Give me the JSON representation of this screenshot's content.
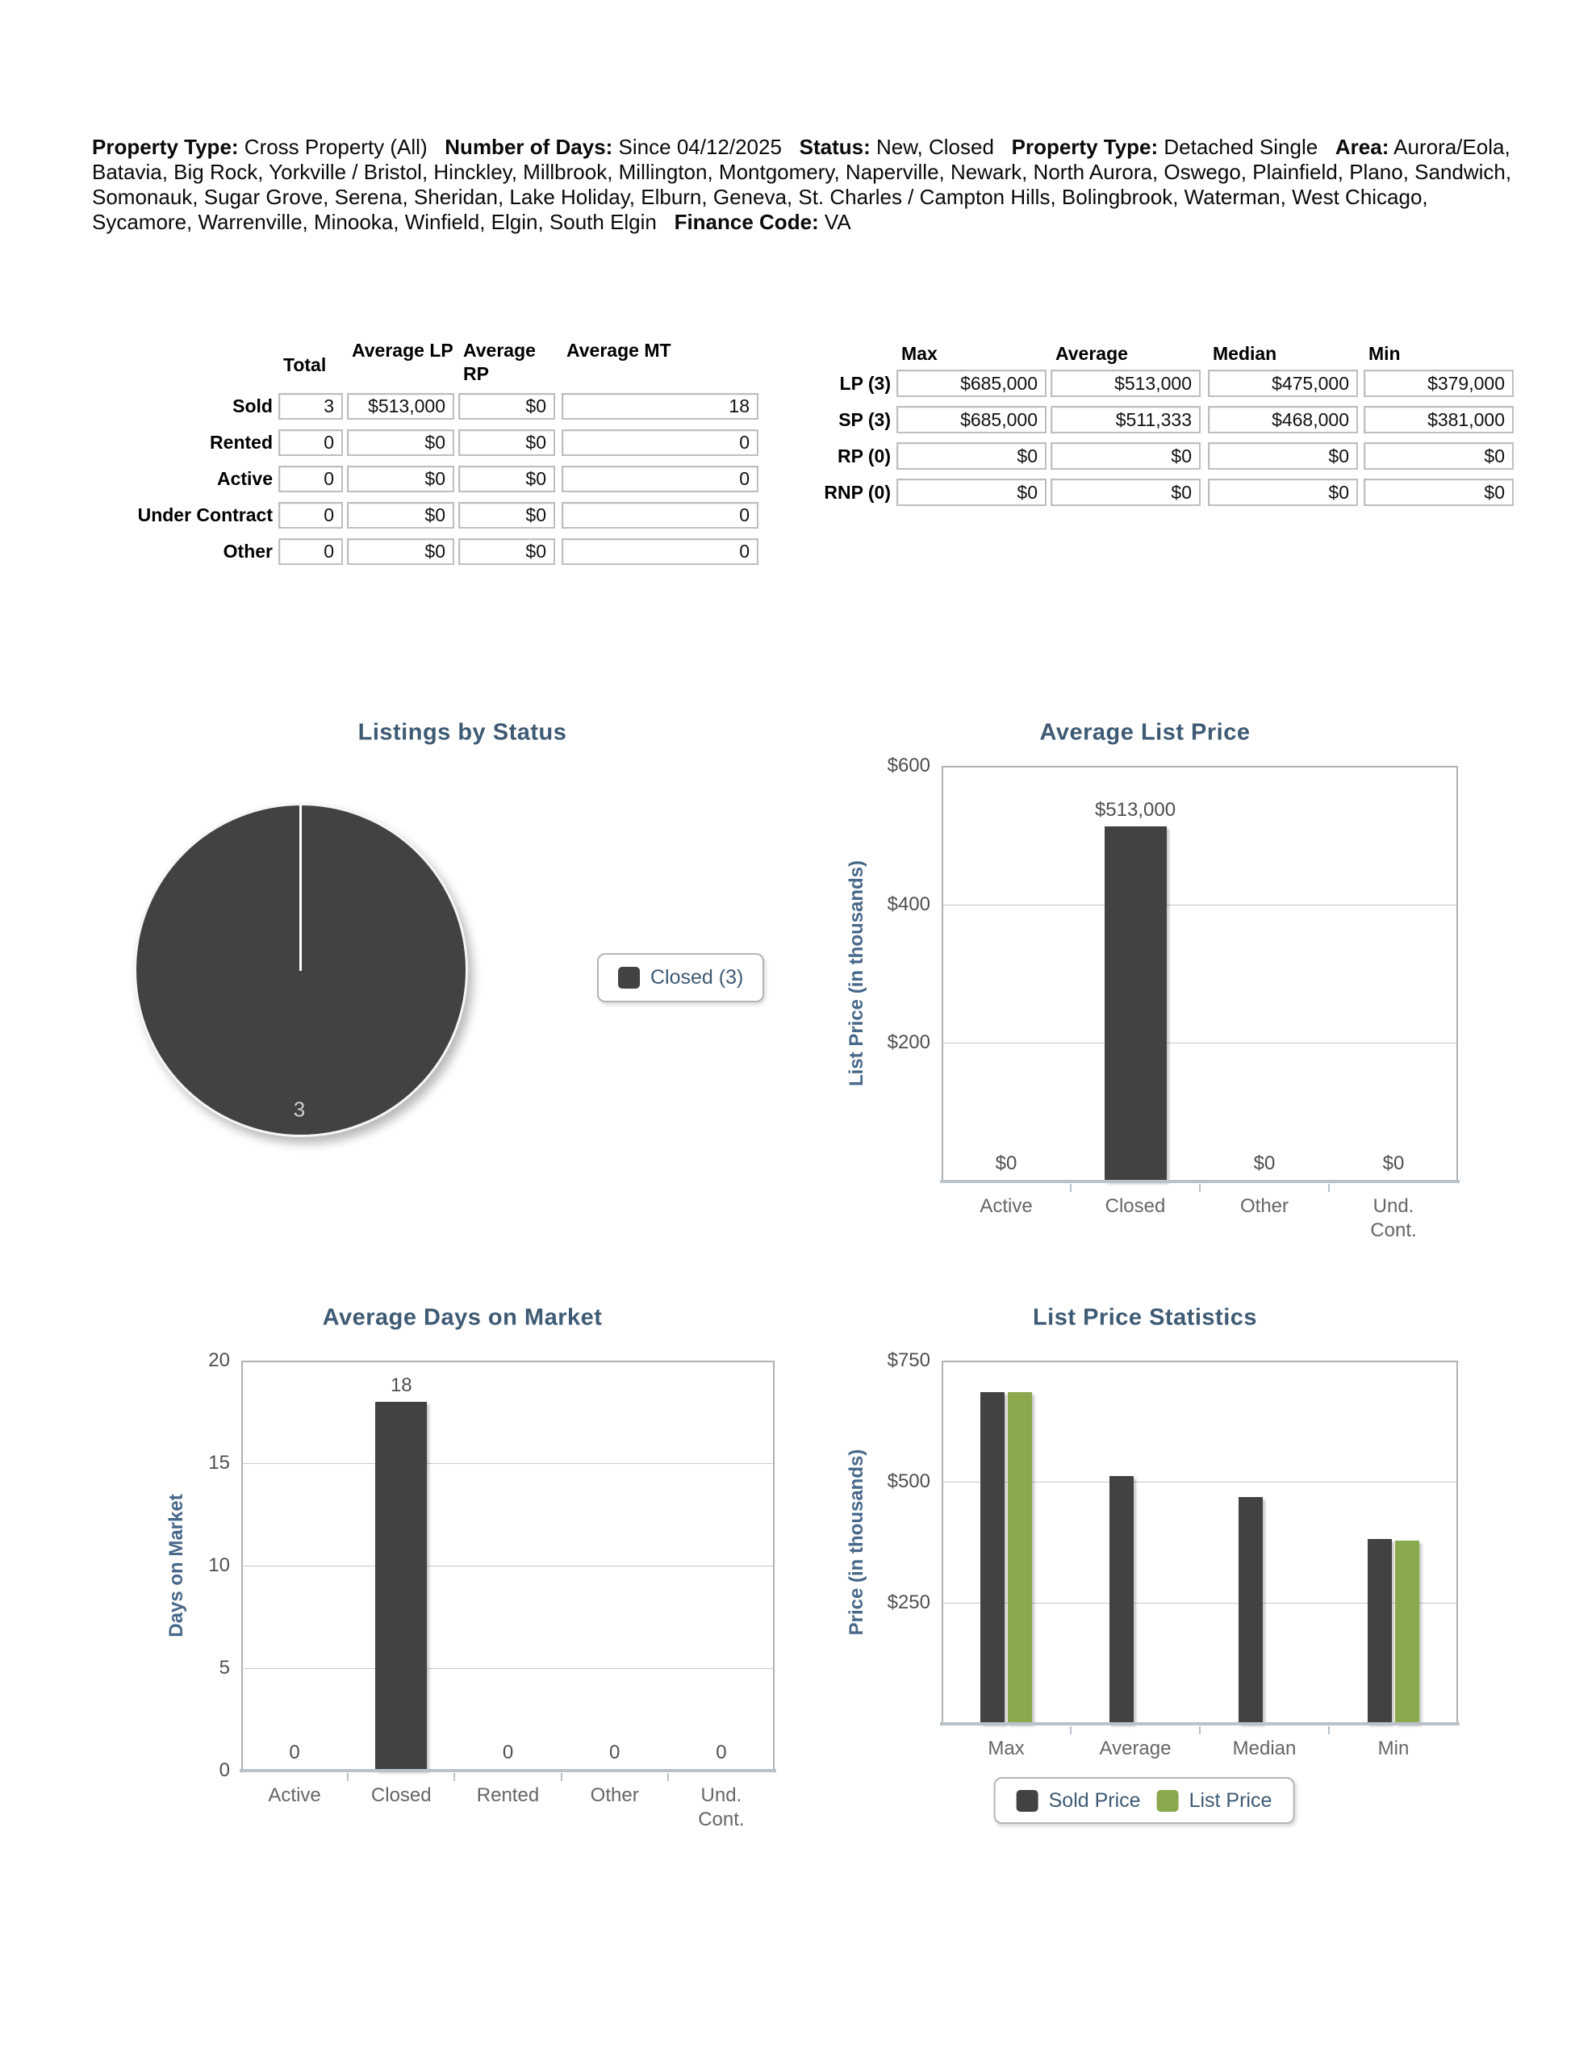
{
  "header": {
    "pairs": [
      {
        "label": "Property Type:",
        "value": "Cross Property (All)"
      },
      {
        "label": "Number of Days:",
        "value": "Since 04/12/2025"
      },
      {
        "label": "Status:",
        "value": "New, Closed"
      },
      {
        "label": "Property Type:",
        "value": "Detached Single"
      },
      {
        "label": "Area:",
        "value": "Aurora/Eola, Batavia, Big Rock, Yorkville / Bristol, Hinckley, Millbrook, Millington, Montgomery, Naperville, Newark, North Aurora, Oswego, Plainfield, Plano, Sandwich, Somonauk, Sugar Grove, Serena, Sheridan, Lake Holiday, Elburn, Geneva, St. Charles / Campton Hills, Bolingbrook, Waterman, West Chicago, Sycamore, Warrenville, Minooka, Winfield, Elgin, South Elgin"
      },
      {
        "label": "Finance Code:",
        "value": "VA"
      }
    ]
  },
  "summary_table": {
    "columns": [
      "Total",
      "Average LP",
      "Average RP",
      "Average MT"
    ],
    "rows": [
      {
        "label": "Sold",
        "values": [
          "3",
          "$513,000",
          "$0",
          "18"
        ]
      },
      {
        "label": "Rented",
        "values": [
          "0",
          "$0",
          "$0",
          "0"
        ]
      },
      {
        "label": "Active",
        "values": [
          "0",
          "$0",
          "$0",
          "0"
        ]
      },
      {
        "label": "Under Contract",
        "values": [
          "0",
          "$0",
          "$0",
          "0"
        ]
      },
      {
        "label": "Other",
        "values": [
          "0",
          "$0",
          "$0",
          "0"
        ]
      }
    ]
  },
  "stats_table": {
    "columns": [
      "Max",
      "Average",
      "Median",
      "Min"
    ],
    "rows": [
      {
        "label": "LP (3)",
        "values": [
          "$685,000",
          "$513,000",
          "$475,000",
          "$379,000"
        ]
      },
      {
        "label": "SP (3)",
        "values": [
          "$685,000",
          "$511,333",
          "$468,000",
          "$381,000"
        ]
      },
      {
        "label": "RP (0)",
        "values": [
          "$0",
          "$0",
          "$0",
          "$0"
        ]
      },
      {
        "label": "RNP (0)",
        "values": [
          "$0",
          "$0",
          "$0",
          "$0"
        ]
      }
    ]
  },
  "chart_data": [
    {
      "type": "pie",
      "title": "Listings by Status",
      "legend_label": "Closed (3)",
      "legend_position": "right",
      "slices": [
        {
          "label": "Closed",
          "value": 3,
          "display_label": "3",
          "color": "#424242"
        }
      ]
    },
    {
      "type": "bar",
      "title": "Average List Price",
      "ylabel": "List Price (in thousands)",
      "ymax": 600,
      "ylim": [
        0,
        600
      ],
      "grid": true,
      "yticks": [
        {
          "label": "$600",
          "value": 600
        },
        {
          "label": "$400",
          "value": 400
        },
        {
          "label": "$200",
          "value": 200
        }
      ],
      "categories": [
        "Active",
        "Closed",
        "Other",
        "Und.\nCont."
      ],
      "values": [
        0,
        513,
        0,
        0
      ],
      "bar_labels": [
        "$0",
        "$513,000",
        "$0",
        "$0"
      ],
      "bar_color": "#424242"
    },
    {
      "type": "bar",
      "title": "Average Days on Market",
      "ylabel": "Days on Market",
      "ymax": 20,
      "ylim": [
        0,
        20
      ],
      "grid": true,
      "yticks": [
        {
          "label": "20",
          "value": 20
        },
        {
          "label": "15",
          "value": 15
        },
        {
          "label": "10",
          "value": 10
        },
        {
          "label": "5",
          "value": 5
        },
        {
          "label": "0",
          "value": 0
        }
      ],
      "categories": [
        "Active",
        "Closed",
        "Rented",
        "Other",
        "Und.\nCont."
      ],
      "values": [
        0,
        18,
        0,
        0,
        0
      ],
      "bar_labels": [
        "0",
        "18",
        "0",
        "0",
        "0"
      ],
      "bar_color": "#424242"
    },
    {
      "type": "grouped-bar",
      "title": "List Price Statistics",
      "ylabel": "Price (in thousands)",
      "ymax": 750,
      "ylim": [
        0,
        750
      ],
      "grid": true,
      "legend_position": "bottom",
      "yticks": [
        {
          "label": "$750",
          "value": 750
        },
        {
          "label": "$500",
          "value": 500
        },
        {
          "label": "$250",
          "value": 250
        }
      ],
      "categories": [
        "Max",
        "Average",
        "Median",
        "Min"
      ],
      "series": [
        {
          "name": "Sold Price",
          "color": "#424242",
          "values": [
            685,
            511.333,
            468,
            381
          ],
          "drawn": [
            true,
            true,
            true,
            true
          ]
        },
        {
          "name": "List Price",
          "color": "#8aa84e",
          "values": [
            685,
            513,
            475,
            379
          ],
          "drawn": [
            true,
            false,
            false,
            true
          ]
        }
      ]
    }
  ],
  "colors": {
    "bar_dark": "#424242",
    "bar_green": "#8aa84e",
    "title_blue": "#3e5a74",
    "axis_label_blue": "#47688a",
    "pie_fill": "#424242"
  }
}
